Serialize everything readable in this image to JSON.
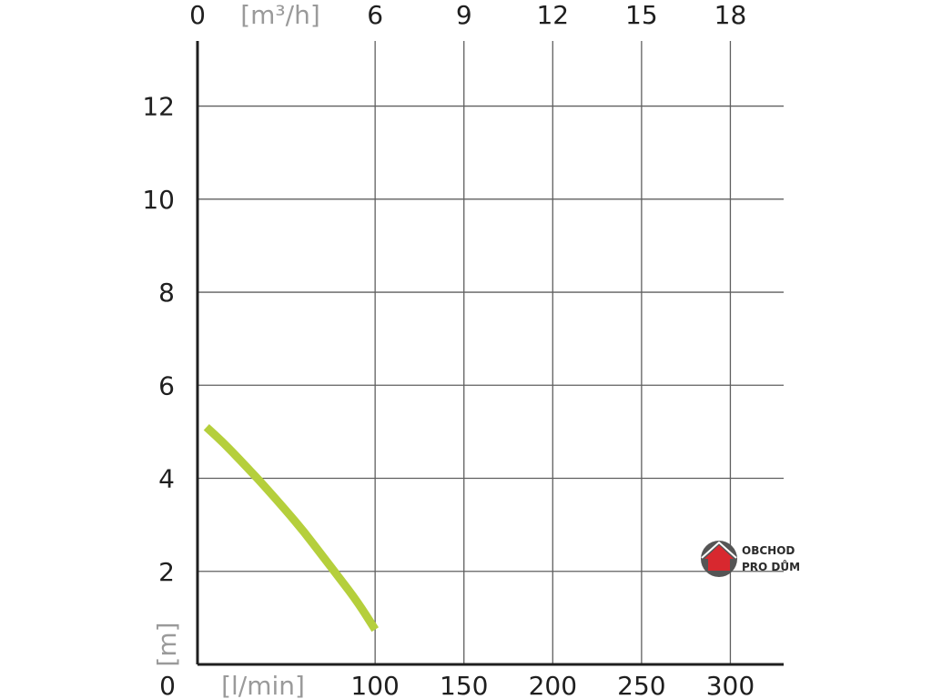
{
  "chart_data": {
    "type": "line",
    "x_bottom": {
      "unit_label": "[l/min]",
      "ticks": [
        "0",
        "100",
        "150",
        "200",
        "250",
        "300"
      ],
      "range": [
        0,
        330
      ]
    },
    "x_top": {
      "unit_label": "[m³/h]",
      "ticks": [
        "0",
        "6",
        "9",
        "12",
        "15",
        "18"
      ],
      "range": [
        0,
        19.8
      ]
    },
    "y": {
      "unit_label": "[m]",
      "ticks": [
        "0",
        "2",
        "4",
        "6",
        "8",
        "10",
        "12"
      ],
      "range": [
        0,
        13.4
      ]
    },
    "grid": true,
    "series": [
      {
        "color": "#b5cf3c",
        "points": [
          {
            "x": 5,
            "y": 5.1
          },
          {
            "x": 15,
            "y": 4.75
          },
          {
            "x": 25,
            "y": 4.35
          },
          {
            "x": 35,
            "y": 3.95
          },
          {
            "x": 50,
            "y": 3.3
          },
          {
            "x": 60,
            "y": 2.85
          },
          {
            "x": 70,
            "y": 2.35
          },
          {
            "x": 80,
            "y": 1.85
          },
          {
            "x": 90,
            "y": 1.35
          },
          {
            "x": 100,
            "y": 0.75
          }
        ]
      }
    ]
  },
  "logo": {
    "line1": "OBCHOD",
    "line2": "PRO DŮM",
    "colors": {
      "circle": "#555555",
      "house": "#d8282f",
      "roof": "#ffffff"
    }
  }
}
